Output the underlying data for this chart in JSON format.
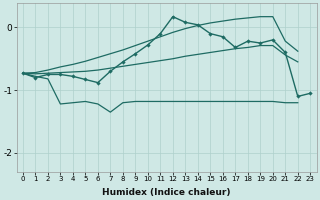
{
  "xlabel": "Humidex (Indice chaleur)",
  "x": [
    0,
    1,
    2,
    3,
    4,
    5,
    6,
    7,
    8,
    9,
    10,
    11,
    12,
    13,
    14,
    15,
    16,
    17,
    18,
    19,
    20,
    21,
    22,
    23
  ],
  "line_main": [
    -0.73,
    -0.8,
    -0.75,
    -0.75,
    -0.78,
    -0.83,
    -0.88,
    -0.7,
    -0.55,
    -0.42,
    -0.28,
    -0.1,
    0.17,
    0.08,
    0.04,
    -0.1,
    -0.15,
    -0.32,
    -0.22,
    -0.25,
    -0.2,
    -0.4,
    -1.1,
    -1.05
  ],
  "line_upper": [
    -0.73,
    -0.72,
    -0.68,
    -0.63,
    -0.59,
    -0.54,
    -0.48,
    -0.42,
    -0.36,
    -0.29,
    -0.22,
    -0.15,
    -0.08,
    -0.02,
    0.03,
    0.07,
    0.1,
    0.13,
    0.15,
    0.17,
    0.17,
    -0.22,
    -0.38,
    null
  ],
  "line_mid": [
    -0.73,
    -0.74,
    -0.73,
    -0.72,
    -0.71,
    -0.7,
    -0.68,
    -0.65,
    -0.62,
    -0.59,
    -0.56,
    -0.53,
    -0.5,
    -0.46,
    -0.43,
    -0.4,
    -0.37,
    -0.34,
    -0.32,
    -0.29,
    -0.29,
    -0.44,
    -0.55,
    null
  ],
  "line_lower": [
    -0.73,
    -0.78,
    -0.82,
    -1.22,
    -1.2,
    -1.18,
    -1.22,
    -1.35,
    -1.2,
    -1.18,
    -1.18,
    -1.18,
    -1.18,
    -1.18,
    -1.18,
    -1.18,
    -1.18,
    -1.18,
    -1.18,
    -1.18,
    -1.18,
    -1.2,
    -1.2,
    null
  ],
  "ylim": [
    -2.3,
    0.38
  ],
  "yticks": [
    -2,
    -1,
    0
  ],
  "bg_color": "#cfe8e5",
  "line_color": "#1e6b63",
  "grid_color": "#aed0cc",
  "fill_color": "#1e6b63"
}
